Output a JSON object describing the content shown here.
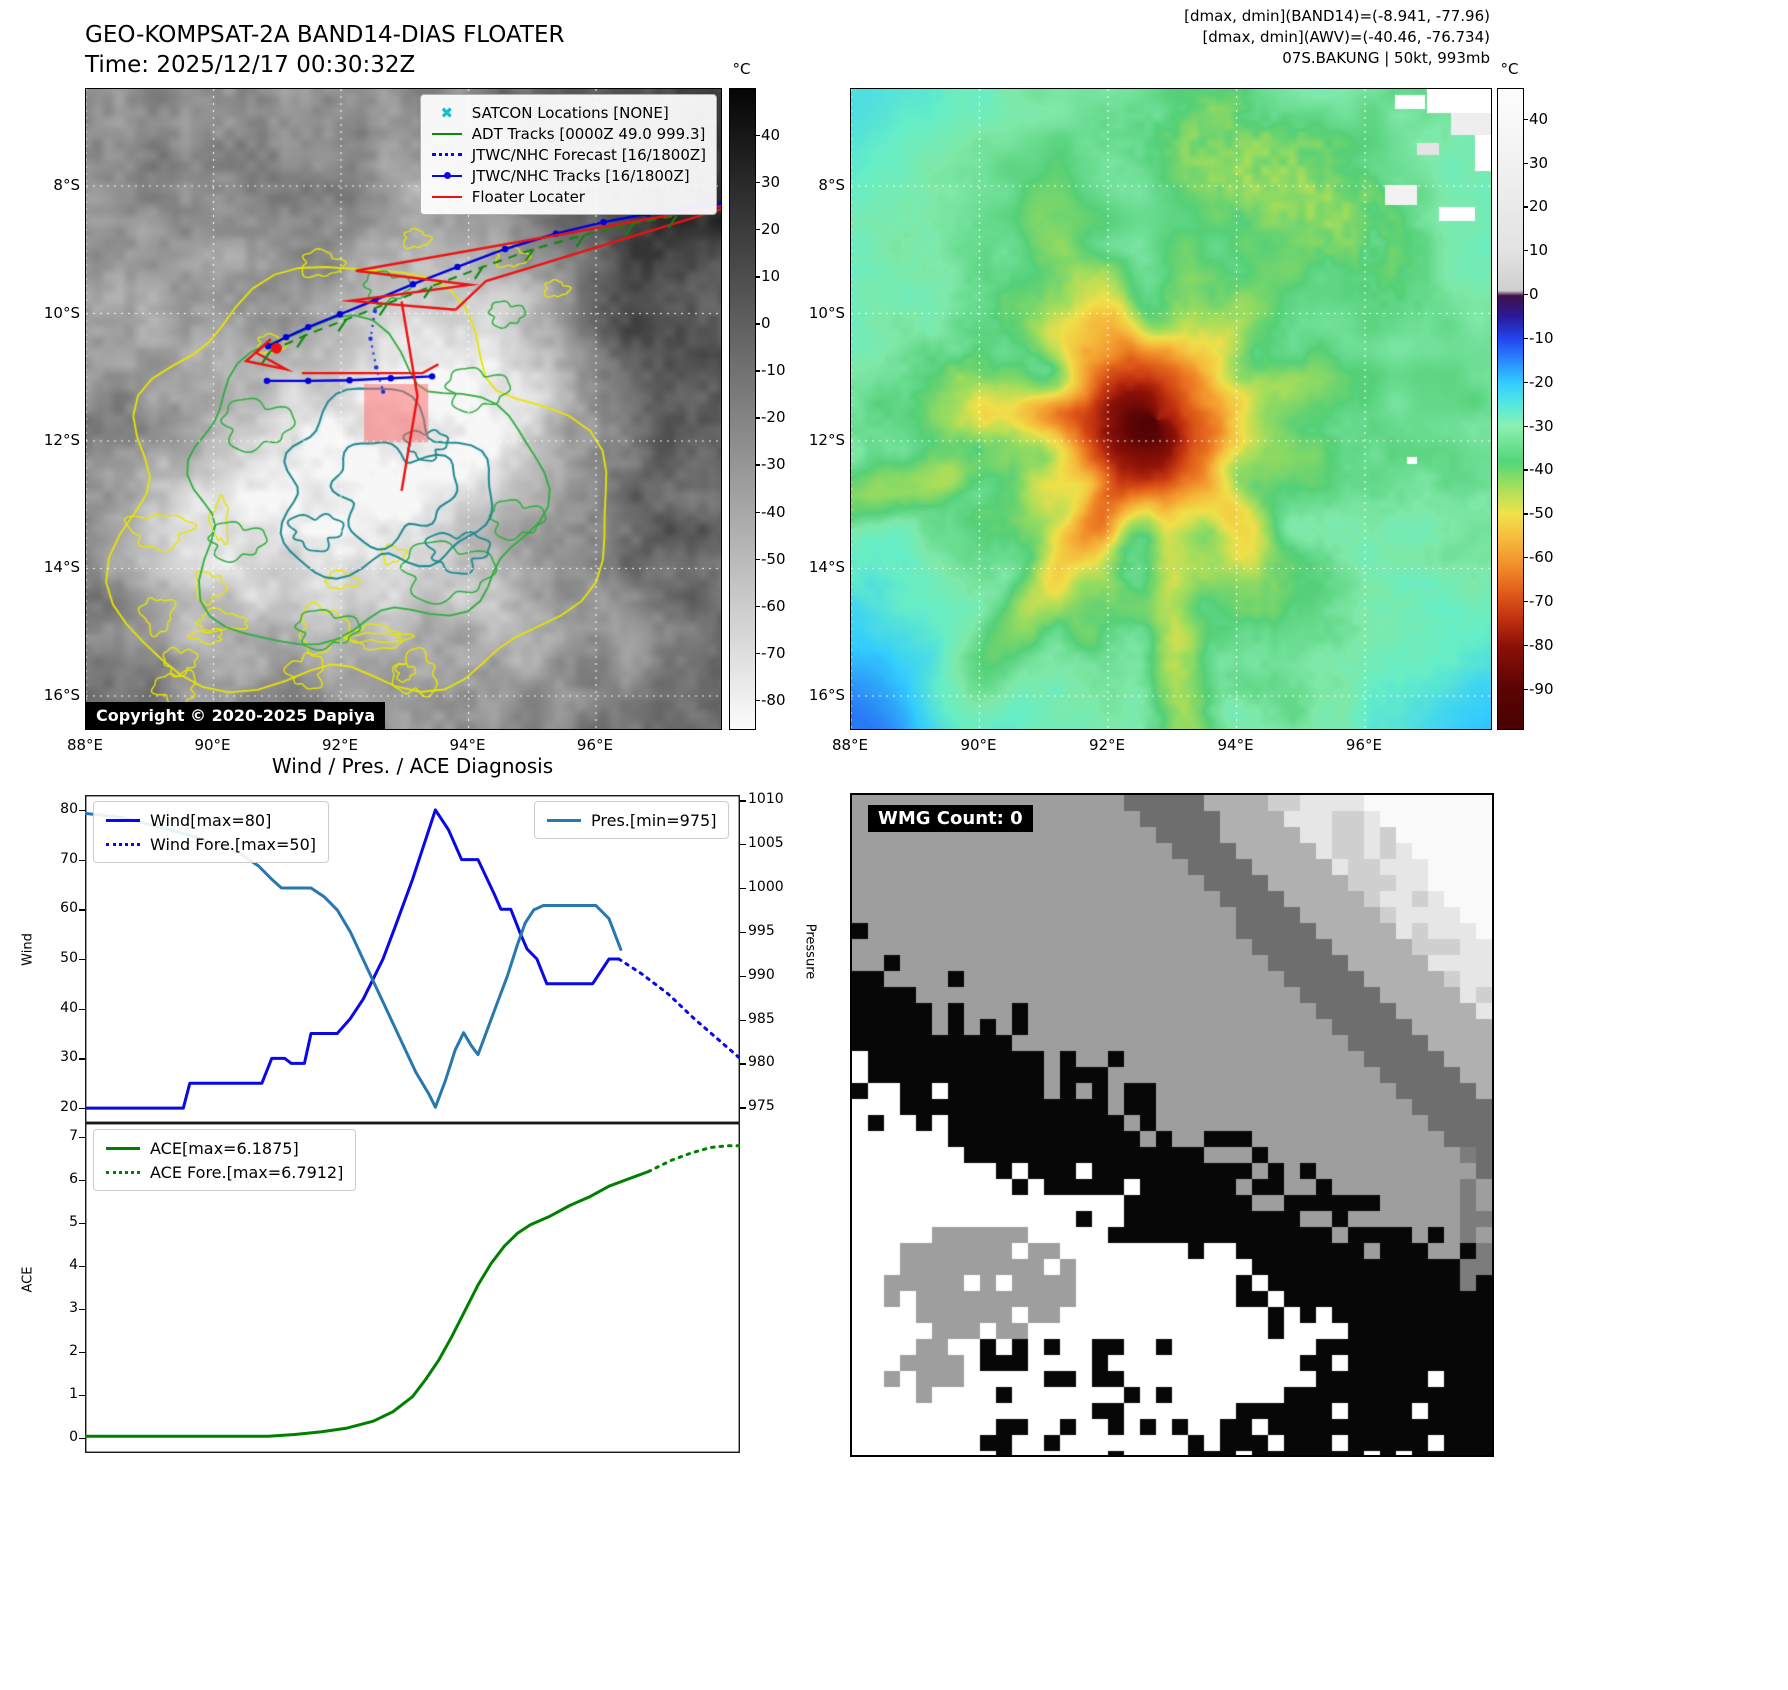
{
  "header": {
    "title": "GEO-KOMPSAT-2A BAND14-DIAS FLOATER",
    "time": "Time: 2025/12/17 00:30:32Z",
    "ann_band14": "[dmax, dmin](BAND14)=(-8.941, -77.96)",
    "ann_awv": "[dmax, dmin](AWV)=(-40.46, -76.734)",
    "ann_storm": "07S.BAKUNG | 50kt, 993mb"
  },
  "band14": {
    "lat_ticks": [
      "8°S",
      "10°S",
      "12°S",
      "14°S",
      "16°S"
    ],
    "lon_ticks": [
      "88°E",
      "90°E",
      "92°E",
      "94°E",
      "96°E"
    ],
    "colorbar": {
      "unit": "°C",
      "vmax": 50,
      "vmin": -86,
      "ticks": [
        40,
        30,
        20,
        10,
        0,
        -10,
        -20,
        -30,
        -40,
        -50,
        -60,
        -70,
        -80
      ]
    },
    "legend": [
      {
        "label": "SATCON Locations [NONE]",
        "style": "cyan-x"
      },
      {
        "label": "ADT Tracks [0000Z 49.0 999.3]",
        "style": "green-line"
      },
      {
        "label": "JTWC/NHC Forecast [16/1800Z]",
        "style": "blue-dotted"
      },
      {
        "label": "JTWC/NHC Tracks [16/1800Z]",
        "style": "blue-line-dots"
      },
      {
        "label": "Floater Locater",
        "style": "red-line"
      }
    ],
    "copyright": "Copyright © 2020-2025 Dapiya"
  },
  "awv": {
    "lat_ticks": [
      "8°S",
      "10°S",
      "12°S",
      "14°S",
      "16°S"
    ],
    "lon_ticks": [
      "88°E",
      "90°E",
      "92°E",
      "94°E",
      "96°E"
    ],
    "colorbar": {
      "unit": "°C",
      "vmax": 47,
      "vmin": -99,
      "ticks": [
        40,
        30,
        20,
        10,
        0,
        -10,
        -20,
        -30,
        -40,
        -50,
        -60,
        -70,
        -80,
        -90
      ]
    }
  },
  "diagnosis": {
    "title": "Wind / Pres. / ACE Diagnosis",
    "wind_ylabel": "Wind",
    "pressure_ylabel": "Pressure",
    "ace_ylabel": "ACE"
  },
  "wmg": {
    "label": "WMG Count: 0"
  },
  "chart_data": [
    {
      "type": "line",
      "title": "Wind / Pres. / ACE Diagnosis",
      "panel": "wind-pressure",
      "x_range": [
        0,
        1
      ],
      "wind_ylim": [
        17,
        83
      ],
      "pressure_ylim": [
        973.2,
        1010.6
      ],
      "yticks_wind": [
        20,
        30,
        40,
        50,
        60,
        70,
        80
      ],
      "yticks_pressure": [
        975,
        980,
        985,
        990,
        995,
        1000,
        1005,
        1010
      ],
      "series": [
        {
          "name": "Wind[max=80]",
          "axis": "wind",
          "style": "solid",
          "color": "#0808e8",
          "points": [
            [
              0,
              20
            ],
            [
              0.15,
              20
            ],
            [
              0.16,
              25
            ],
            [
              0.27,
              25
            ],
            [
              0.285,
              30
            ],
            [
              0.305,
              30
            ],
            [
              0.315,
              29
            ],
            [
              0.335,
              29
            ],
            [
              0.345,
              35
            ],
            [
              0.385,
              35
            ],
            [
              0.405,
              38
            ],
            [
              0.425,
              42
            ],
            [
              0.44,
              46
            ],
            [
              0.455,
              50
            ],
            [
              0.475,
              57
            ],
            [
              0.5,
              66
            ],
            [
              0.52,
              74
            ],
            [
              0.535,
              80
            ],
            [
              0.555,
              76
            ],
            [
              0.575,
              70
            ],
            [
              0.6,
              70
            ],
            [
              0.625,
              63
            ],
            [
              0.635,
              60
            ],
            [
              0.65,
              60
            ],
            [
              0.665,
              55
            ],
            [
              0.675,
              52
            ],
            [
              0.69,
              50
            ],
            [
              0.705,
              45
            ],
            [
              0.775,
              45
            ],
            [
              0.8,
              50
            ],
            [
              0.815,
              50
            ]
          ]
        },
        {
          "name": "Wind Fore.[max=50]",
          "axis": "wind",
          "style": "dotted",
          "color": "#0808e8",
          "points": [
            [
              0.815,
              50
            ],
            [
              0.85,
              47
            ],
            [
              0.89,
              43
            ],
            [
              0.93,
              38
            ],
            [
              0.965,
              34
            ],
            [
              1,
              30
            ]
          ]
        },
        {
          "name": "Pres.[min=975]",
          "axis": "pressure",
          "style": "solid",
          "color": "#2878b0",
          "points": [
            [
              0,
              1008.5
            ],
            [
              0.06,
              1008
            ],
            [
              0.11,
              1007
            ],
            [
              0.16,
              1006
            ],
            [
              0.2,
              1005
            ],
            [
              0.235,
              1004
            ],
            [
              0.265,
              1002.5
            ],
            [
              0.285,
              1001
            ],
            [
              0.3,
              1000
            ],
            [
              0.345,
              1000
            ],
            [
              0.365,
              999
            ],
            [
              0.385,
              997.5
            ],
            [
              0.405,
              995
            ],
            [
              0.43,
              991
            ],
            [
              0.455,
              987
            ],
            [
              0.48,
              983
            ],
            [
              0.505,
              979
            ],
            [
              0.525,
              976.5
            ],
            [
              0.535,
              975
            ],
            [
              0.55,
              978
            ],
            [
              0.565,
              981.5
            ],
            [
              0.578,
              983.5
            ],
            [
              0.59,
              982
            ],
            [
              0.6,
              981
            ],
            [
              0.615,
              984
            ],
            [
              0.63,
              987
            ],
            [
              0.645,
              990
            ],
            [
              0.66,
              993.5
            ],
            [
              0.672,
              996
            ],
            [
              0.685,
              997.5
            ],
            [
              0.7,
              998
            ],
            [
              0.78,
              998
            ],
            [
              0.8,
              996.5
            ],
            [
              0.818,
              993
            ]
          ]
        }
      ]
    },
    {
      "type": "line",
      "panel": "ace",
      "ylim": [
        -0.36,
        7.32
      ],
      "yticks": [
        0,
        1,
        2,
        3,
        4,
        5,
        6,
        7
      ],
      "series": [
        {
          "name": "ACE[max=6.1875]",
          "style": "solid",
          "color": "#008000",
          "points": [
            [
              0,
              0.03
            ],
            [
              0.28,
              0.03
            ],
            [
              0.32,
              0.07
            ],
            [
              0.36,
              0.13
            ],
            [
              0.4,
              0.22
            ],
            [
              0.44,
              0.38
            ],
            [
              0.47,
              0.6
            ],
            [
              0.5,
              0.95
            ],
            [
              0.52,
              1.35
            ],
            [
              0.54,
              1.8
            ],
            [
              0.56,
              2.35
            ],
            [
              0.58,
              2.95
            ],
            [
              0.6,
              3.55
            ],
            [
              0.62,
              4.05
            ],
            [
              0.64,
              4.45
            ],
            [
              0.66,
              4.75
            ],
            [
              0.68,
              4.95
            ],
            [
              0.71,
              5.15
            ],
            [
              0.74,
              5.4
            ],
            [
              0.77,
              5.6
            ],
            [
              0.8,
              5.85
            ],
            [
              0.83,
              6.02
            ],
            [
              0.86,
              6.19
            ]
          ]
        },
        {
          "name": "ACE Fore.[max=6.7912]",
          "style": "dotted",
          "color": "#008000",
          "points": [
            [
              0.86,
              6.19
            ],
            [
              0.895,
              6.45
            ],
            [
              0.925,
              6.62
            ],
            [
              0.955,
              6.75
            ],
            [
              0.98,
              6.79
            ],
            [
              1,
              6.79
            ]
          ]
        }
      ]
    },
    {
      "type": "heatmap",
      "panel": "band14-map",
      "title": "GEO-KOMPSAT-2A BAND14 infrared image with track overlays",
      "lon_range": [
        88,
        98
      ],
      "lat_range": [
        -6.5,
        -16.5
      ],
      "tracks": [
        {
          "name": "adt-tracks",
          "color": "#0a8a0a",
          "width": 2,
          "dash": [
            9,
            7
          ],
          "markers": 0,
          "segments": [
            [
              [
                0.29,
                0.41
              ],
              [
                0.345,
                0.385
              ],
              [
                0.41,
                0.36
              ],
              [
                0.475,
                0.335
              ],
              [
                0.545,
                0.308
              ],
              [
                0.625,
                0.278
              ],
              [
                0.705,
                0.25
              ],
              [
                0.785,
                0.228
              ],
              [
                0.862,
                0.21
              ],
              [
                0.93,
                0.198
              ]
            ]
          ]
        },
        {
          "name": "jtwc-nhc-tracks",
          "color": "#0000dd",
          "width": 2.4,
          "markers": 3.2,
          "segments": [
            [
              [
                0.287,
                0.402
              ],
              [
                0.315,
                0.388
              ],
              [
                0.35,
                0.372
              ],
              [
                0.4,
                0.352
              ],
              [
                0.455,
                0.33
              ],
              [
                0.515,
                0.305
              ],
              [
                0.585,
                0.278
              ],
              [
                0.66,
                0.25
              ],
              [
                0.74,
                0.226
              ],
              [
                0.815,
                0.208
              ],
              [
                0.885,
                0.195
              ],
              [
                0.95,
                0.186
              ],
              [
                1,
                0.181
              ]
            ],
            [
              [
                0.285,
                0.456
              ],
              [
                0.35,
                0.456
              ],
              [
                0.415,
                0.455
              ],
              [
                0.48,
                0.452
              ],
              [
                0.545,
                0.449
              ]
            ]
          ]
        },
        {
          "name": "jtwc-nhc-forecast",
          "color": "#2233dd",
          "width": 2.2,
          "dash": [
            2,
            5
          ],
          "markers": 2.2,
          "segments": [
            [
              [
                0.455,
                0.347
              ],
              [
                0.448,
                0.39
              ],
              [
                0.457,
                0.435
              ],
              [
                0.468,
                0.473
              ]
            ]
          ]
        },
        {
          "name": "floater-locater",
          "color": "#ee1111",
          "width": 2.4,
          "markers": 0,
          "segments": [
            [
              [
                0.425,
                0.284
              ],
              [
                0.605,
                0.306
              ],
              [
                0.417,
                0.331
              ],
              [
                0.582,
                0.345
              ]
            ],
            [
              [
                0.425,
                0.284
              ],
              [
                1,
                0.183
              ]
            ],
            [
              [
                0.582,
                0.345
              ],
              [
                0.63,
                0.3
              ],
              [
                1,
                0.188
              ]
            ],
            [
              [
                0.268,
                0.412
              ],
              [
                0.291,
                0.391
              ],
              [
                0.252,
                0.425
              ],
              [
                0.315,
                0.438
              ],
              [
                0.268,
                0.412
              ]
            ],
            [
              [
                0.34,
                0.444
              ],
              [
                0.53,
                0.444
              ],
              [
                0.555,
                0.43
              ]
            ],
            [
              [
                0.497,
                0.332
              ],
              [
                0.522,
                0.48
              ],
              [
                0.497,
                0.628
              ]
            ]
          ]
        }
      ],
      "current_position": [
        0.3,
        0.405
      ],
      "floater_box": [
        0.438,
        0.461,
        0.101,
        0.091
      ]
    },
    {
      "type": "heatmap",
      "panel": "awv-map",
      "title": "AWV color-enhanced satellite image",
      "lon_range": [
        88,
        98
      ],
      "lat_range": [
        -6.5,
        -16.5
      ]
    },
    {
      "type": "heatmap",
      "panel": "wmg",
      "title": "WMG Count: 0"
    }
  ]
}
